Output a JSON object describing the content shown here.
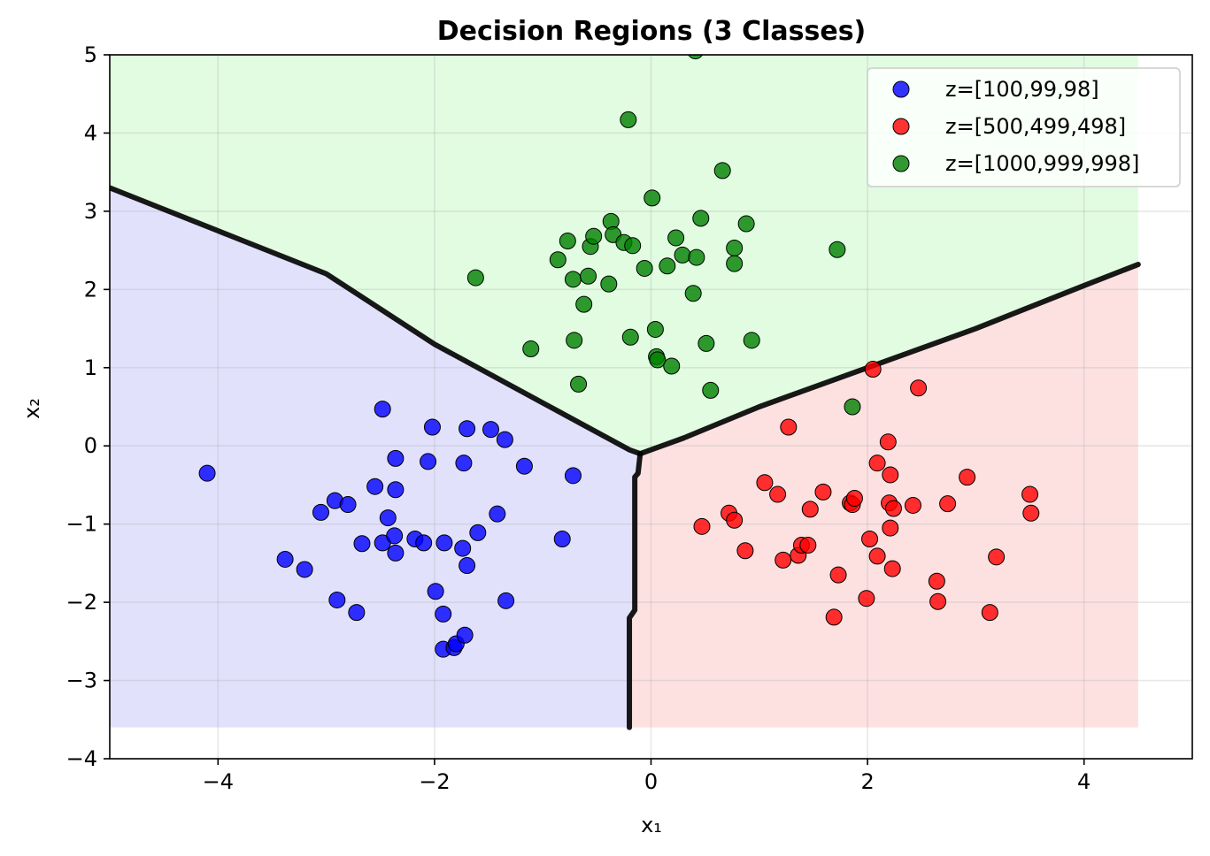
{
  "chart_data": {
    "type": "scatter",
    "title": "Decision Regions (3 Classes)",
    "xlabel": "x₁",
    "ylabel": "x₂",
    "xlim": [
      -5,
      5
    ],
    "ylim": [
      -4,
      5
    ],
    "x_ticks": [
      -4,
      -2,
      0,
      2,
      4
    ],
    "x_tick_labels": [
      "−4",
      "−2",
      "0",
      "2",
      "4"
    ],
    "y_ticks": [
      -4,
      -3,
      -2,
      -1,
      0,
      1,
      2,
      3,
      4,
      5
    ],
    "y_tick_labels": [
      "−4",
      "−3",
      "−2",
      "−1",
      "0",
      "1",
      "2",
      "3",
      "4",
      "5"
    ],
    "grid": true,
    "legend_position": "top-right",
    "regions": [
      {
        "class": 0,
        "color": "#e1e1fc"
      },
      {
        "class": 1,
        "color": "#fde1e1"
      },
      {
        "class": 2,
        "color": "#e1fce1"
      }
    ],
    "region_extent": {
      "x": [
        -5,
        4.5
      ],
      "y": [
        -3.6,
        5
      ]
    },
    "boundary_color": "#000000",
    "boundaries": [
      [
        [
          -5.0,
          3.3
        ],
        [
          -4.0,
          2.75
        ],
        [
          -3.0,
          2.2
        ],
        [
          -2.0,
          1.3
        ],
        [
          -1.0,
          0.55
        ],
        [
          -0.2,
          -0.05
        ],
        [
          -0.1,
          -0.1
        ]
      ],
      [
        [
          -0.1,
          -0.1
        ],
        [
          0.3,
          0.1
        ],
        [
          1.0,
          0.5
        ],
        [
          2.0,
          1.0
        ],
        [
          3.0,
          1.5
        ],
        [
          4.0,
          2.05
        ],
        [
          4.5,
          2.32
        ]
      ],
      [
        [
          -0.1,
          -0.1
        ],
        [
          -0.12,
          -0.35
        ],
        [
          -0.15,
          -0.4
        ],
        [
          -0.15,
          -2.1
        ],
        [
          -0.2,
          -2.2
        ],
        [
          -0.2,
          -3.6
        ]
      ]
    ],
    "series": [
      {
        "name": "z=[100,99,98]",
        "color": "#0000ff",
        "points": [
          [
            -4.1,
            -0.35
          ],
          [
            -3.38,
            -1.45
          ],
          [
            -3.2,
            -1.58
          ],
          [
            -3.05,
            -0.85
          ],
          [
            -2.92,
            -0.7
          ],
          [
            -2.9,
            -1.97
          ],
          [
            -2.8,
            -0.75
          ],
          [
            -2.72,
            -2.13
          ],
          [
            -2.67,
            -1.25
          ],
          [
            -2.55,
            -0.52
          ],
          [
            -2.48,
            0.47
          ],
          [
            -2.48,
            -1.24
          ],
          [
            -2.43,
            -0.92
          ],
          [
            -2.37,
            -1.15
          ],
          [
            -2.36,
            -1.37
          ],
          [
            -2.36,
            -0.56
          ],
          [
            -2.36,
            -0.16
          ],
          [
            -2.18,
            -1.19
          ],
          [
            -2.1,
            -1.24
          ],
          [
            -2.06,
            -0.2
          ],
          [
            -2.02,
            0.24
          ],
          [
            -1.99,
            -1.86
          ],
          [
            -1.92,
            -2.15
          ],
          [
            -1.91,
            -1.24
          ],
          [
            -1.92,
            -2.6
          ],
          [
            -1.82,
            -2.58
          ],
          [
            -1.8,
            -2.53
          ],
          [
            -1.74,
            -1.31
          ],
          [
            -1.73,
            -0.22
          ],
          [
            -1.72,
            -2.42
          ],
          [
            -1.7,
            -1.53
          ],
          [
            -1.7,
            0.22
          ],
          [
            -1.6,
            -1.11
          ],
          [
            -1.48,
            0.21
          ],
          [
            -1.42,
            -0.87
          ],
          [
            -1.35,
            0.08
          ],
          [
            -1.34,
            -1.98
          ],
          [
            -1.17,
            -0.26
          ],
          [
            -0.82,
            -1.19
          ],
          [
            -0.72,
            -0.38
          ]
        ]
      },
      {
        "name": "z=[500,499,498]",
        "color": "#ff0000",
        "points": [
          [
            0.47,
            -1.03
          ],
          [
            0.72,
            -0.86
          ],
          [
            0.77,
            -0.95
          ],
          [
            0.87,
            -1.34
          ],
          [
            1.05,
            -0.47
          ],
          [
            1.17,
            -0.62
          ],
          [
            1.22,
            -1.46
          ],
          [
            1.27,
            0.24
          ],
          [
            1.36,
            -1.4
          ],
          [
            1.39,
            -1.27
          ],
          [
            1.45,
            -1.27
          ],
          [
            1.47,
            -0.81
          ],
          [
            1.59,
            -0.59
          ],
          [
            1.69,
            -2.19
          ],
          [
            1.73,
            -1.65
          ],
          [
            1.84,
            -0.73
          ],
          [
            1.86,
            -0.75
          ],
          [
            1.88,
            -0.67
          ],
          [
            1.99,
            -1.95
          ],
          [
            2.02,
            -1.19
          ],
          [
            2.05,
            0.98
          ],
          [
            2.09,
            -0.22
          ],
          [
            2.09,
            -1.41
          ],
          [
            2.19,
            0.05
          ],
          [
            2.2,
            -0.73
          ],
          [
            2.21,
            -1.05
          ],
          [
            2.21,
            -0.37
          ],
          [
            2.23,
            -1.57
          ],
          [
            2.24,
            -0.8
          ],
          [
            2.42,
            -0.76
          ],
          [
            2.47,
            0.74
          ],
          [
            2.64,
            -1.73
          ],
          [
            2.65,
            -1.99
          ],
          [
            2.74,
            -0.74
          ],
          [
            2.92,
            -0.4
          ],
          [
            3.13,
            -2.13
          ],
          [
            3.19,
            -1.42
          ],
          [
            3.5,
            -0.62
          ],
          [
            3.51,
            -0.86
          ]
        ]
      },
      {
        "name": "z=[1000,999,998]",
        "color": "#008000",
        "points": [
          [
            -1.62,
            2.15
          ],
          [
            -1.11,
            1.24
          ],
          [
            -0.86,
            2.38
          ],
          [
            -0.77,
            2.62
          ],
          [
            -0.72,
            2.13
          ],
          [
            -0.71,
            1.35
          ],
          [
            -0.67,
            0.79
          ],
          [
            -0.62,
            1.81
          ],
          [
            -0.58,
            2.17
          ],
          [
            -0.56,
            2.55
          ],
          [
            -0.53,
            2.68
          ],
          [
            -0.39,
            2.07
          ],
          [
            -0.37,
            2.87
          ],
          [
            -0.35,
            2.7
          ],
          [
            -0.25,
            2.6
          ],
          [
            -0.21,
            4.17
          ],
          [
            -0.19,
            1.39
          ],
          [
            -0.17,
            2.56
          ],
          [
            -0.06,
            2.27
          ],
          [
            0.01,
            3.17
          ],
          [
            0.04,
            1.49
          ],
          [
            0.05,
            1.14
          ],
          [
            0.06,
            1.1
          ],
          [
            0.15,
            2.3
          ],
          [
            0.19,
            1.02
          ],
          [
            0.23,
            2.66
          ],
          [
            0.29,
            2.44
          ],
          [
            0.39,
            1.95
          ],
          [
            0.41,
            5.05
          ],
          [
            0.42,
            2.41
          ],
          [
            0.46,
            2.91
          ],
          [
            0.51,
            1.31
          ],
          [
            0.55,
            0.71
          ],
          [
            0.66,
            3.52
          ],
          [
            0.77,
            2.53
          ],
          [
            0.77,
            2.33
          ],
          [
            0.88,
            2.84
          ],
          [
            0.93,
            1.35
          ],
          [
            1.72,
            2.51
          ],
          [
            1.86,
            0.5
          ]
        ]
      }
    ]
  }
}
